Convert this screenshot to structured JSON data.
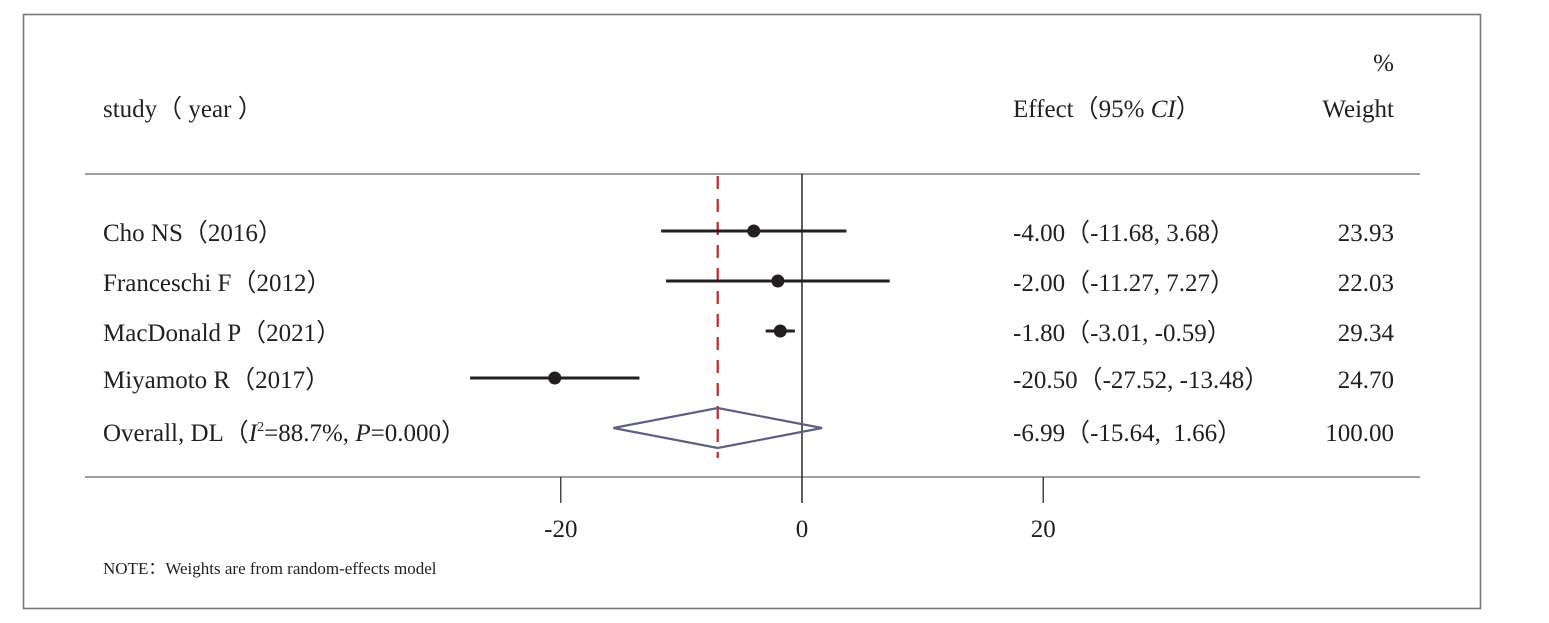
{
  "chart_data": {
    "type": "forest",
    "header": {
      "study_label": "study（ year ）",
      "effect_label_prefix": "Effect（95% ",
      "effect_label_ci": "CI",
      "effect_label_suffix": "）",
      "weight_label_top": "%",
      "weight_label": "Weight"
    },
    "studies": [
      {
        "label": "Cho NS（2016）",
        "effect": -4.0,
        "lower": -11.68,
        "upper": 3.68,
        "effect_text": "-4.00（-11.68, 3.68）",
        "weight": "23.93"
      },
      {
        "label": "Franceschi F（2012）",
        "effect": -2.0,
        "lower": -11.27,
        "upper": 7.27,
        "effect_text": "-2.00（-11.27, 7.27）",
        "weight": "22.03"
      },
      {
        "label": "MacDonald P（2021）",
        "effect": -1.8,
        "lower": -3.01,
        "upper": -0.59,
        "effect_text": "-1.80（-3.01, -0.59）",
        "weight": "29.34"
      },
      {
        "label": "Miyamoto R（2017）",
        "effect": -20.5,
        "lower": -27.52,
        "upper": -13.48,
        "effect_text": "-20.50（-27.52, -13.48）",
        "weight": "24.70"
      }
    ],
    "overall": {
      "label_prefix": "Overall, DL（",
      "i2_symbol": "I",
      "i2_sup": "2",
      "i2_value": "=88.7%, ",
      "p_symbol": "P",
      "p_value": "=0.000）",
      "effect": -6.99,
      "lower": -15.64,
      "upper": 1.66,
      "effect_text": "-6.99（-15.64,  1.66）",
      "weight": "100.00"
    },
    "x_axis": {
      "ticks": [
        -20,
        0,
        20
      ],
      "tick_labels": [
        "-20",
        "0",
        "20"
      ],
      "xlim": [
        -30,
        31
      ]
    },
    "null_line": 0,
    "note": "NOTE：Weights are from random-effects model",
    "colors": {
      "overall_line": "#c0272d",
      "diamond": "#5b5f82",
      "marker": "#231f20",
      "rules": "#808080"
    }
  }
}
